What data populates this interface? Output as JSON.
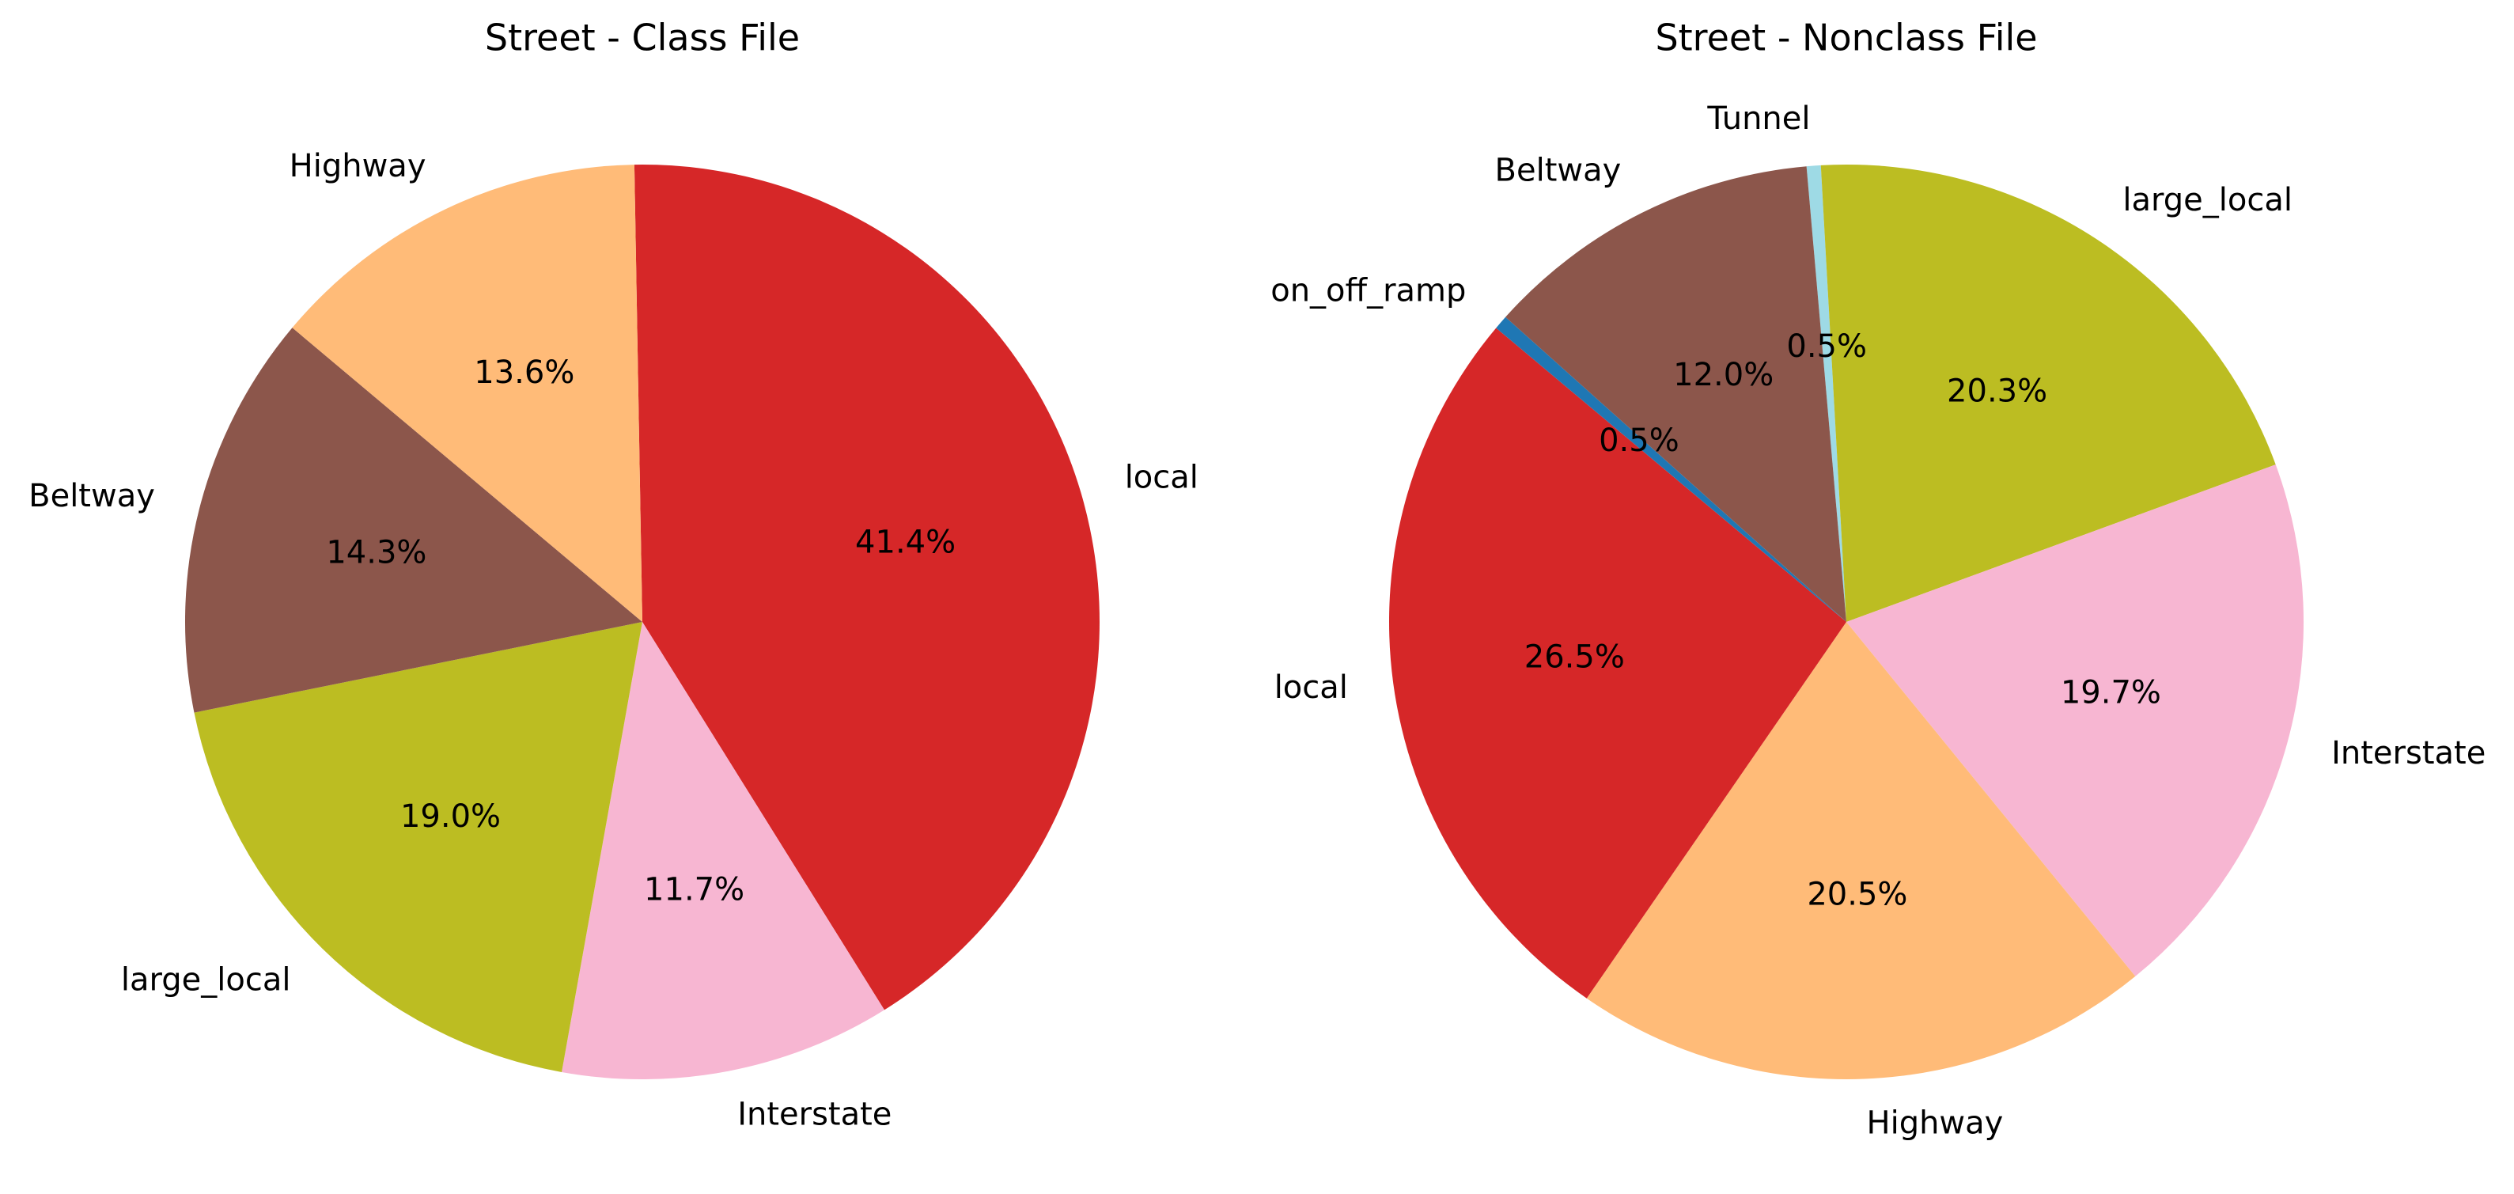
{
  "chart_data": [
    {
      "type": "pie",
      "title": "Street - Class File",
      "start_angle": 91,
      "direction": "clockwise",
      "slices": [
        {
          "label": "local",
          "percent_label": "41.4%",
          "value": 41.4,
          "color": "#d62728"
        },
        {
          "label": "Interstate",
          "percent_label": "11.7%",
          "value": 11.7,
          "color": "#f7b6d2"
        },
        {
          "label": "large_local",
          "percent_label": "19.0%",
          "value": 19.0,
          "color": "#bcbd22"
        },
        {
          "label": "Beltway",
          "percent_label": "14.3%",
          "value": 14.3,
          "color": "#8c564b"
        },
        {
          "label": "Highway",
          "percent_label": "13.6%",
          "value": 13.6,
          "color": "#ffbb78"
        }
      ]
    },
    {
      "type": "pie",
      "title": "Street - Nonclass File",
      "start_angle": 95,
      "direction": "clockwise",
      "slices": [
        {
          "label": "Tunnel",
          "percent_label": "0.5%",
          "value": 0.5,
          "color": "#9edae5"
        },
        {
          "label": "large_local",
          "percent_label": "20.3%",
          "value": 20.3,
          "color": "#bcbd22"
        },
        {
          "label": "Interstate",
          "percent_label": "19.7%",
          "value": 19.7,
          "color": "#f7b6d2"
        },
        {
          "label": "Highway",
          "percent_label": "20.5%",
          "value": 20.5,
          "color": "#ffbb78"
        },
        {
          "label": "local",
          "percent_label": "26.5%",
          "value": 26.5,
          "color": "#d62728"
        },
        {
          "label": "on_off_ramp",
          "percent_label": "0.5%",
          "value": 0.5,
          "color": "#1f77b4"
        },
        {
          "label": "Beltway",
          "percent_label": "12.0%",
          "value": 12.0,
          "color": "#8c564b"
        }
      ]
    }
  ]
}
